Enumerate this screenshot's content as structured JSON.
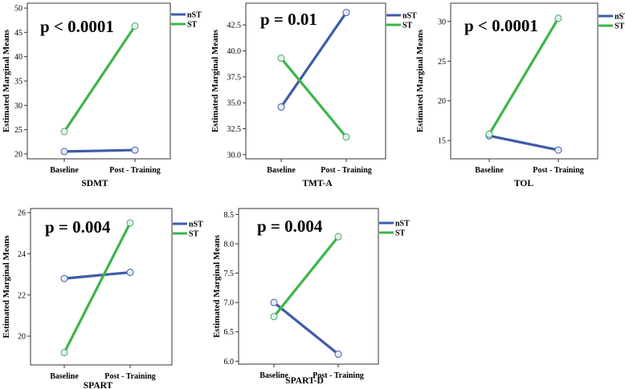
{
  "colors": {
    "nST": "#3f5ba9",
    "ST": "#3db54a",
    "frame": "#333333",
    "marker_fill": "#e6ecf8"
  },
  "chart_data": [
    {
      "type": "line",
      "xlabel": "SDMT",
      "ylabel": "Estimated Marginal Means",
      "annotation": "p < 0.0001",
      "categories": [
        "Baseline",
        "Post - Training"
      ],
      "ylim": [
        19,
        51
      ],
      "yticks": [
        20,
        25,
        30,
        35,
        40,
        45,
        50
      ],
      "tick_labels": [
        "20",
        "25",
        "30",
        "35",
        "40",
        "45",
        "50"
      ],
      "series": [
        {
          "name": "nST",
          "values": [
            20.5,
            20.8
          ]
        },
        {
          "name": "ST",
          "values": [
            24.6,
            46.3
          ]
        }
      ],
      "legend_position": "top-right"
    },
    {
      "type": "line",
      "xlabel": "TMT-A",
      "ylabel": "Estimated Marginal Means",
      "annotation": "p = 0.01",
      "categories": [
        "Baseline",
        "Post - Training"
      ],
      "ylim": [
        29.6,
        44.6
      ],
      "yticks": [
        30,
        32.5,
        35,
        37.5,
        40,
        42.5
      ],
      "tick_labels": [
        "30.0",
        "32.5",
        "35.0",
        "37.5",
        "40.0",
        "42.5"
      ],
      "series": [
        {
          "name": "nST",
          "values": [
            34.6,
            43.7
          ]
        },
        {
          "name": "ST",
          "values": [
            39.3,
            31.7
          ]
        }
      ],
      "legend_position": "top-right"
    },
    {
      "type": "line",
      "xlabel": "TOL",
      "ylabel": "Estimated Marginal Means",
      "annotation": "p < 0.0001",
      "categories": [
        "Baseline",
        "Post - Training"
      ],
      "ylim": [
        12.7,
        32.3
      ],
      "yticks": [
        15,
        20,
        25,
        30
      ],
      "tick_labels": [
        "15",
        "20",
        "25",
        "30"
      ],
      "series": [
        {
          "name": "nST",
          "values": [
            15.6,
            13.8
          ]
        },
        {
          "name": "ST",
          "values": [
            15.8,
            30.4
          ]
        }
      ],
      "legend_position": "top-right"
    },
    {
      "type": "line",
      "xlabel": "SPART",
      "ylabel": "Estimated Marginal Means",
      "annotation": "p = 0.004",
      "categories": [
        "Baseline",
        "Post - Training"
      ],
      "ylim": [
        18.6,
        26.2
      ],
      "yticks": [
        20,
        22,
        24,
        26
      ],
      "tick_labels": [
        "20",
        "22",
        "24",
        "26"
      ],
      "series": [
        {
          "name": "nST",
          "values": [
            22.8,
            23.1
          ]
        },
        {
          "name": "ST",
          "values": [
            19.2,
            25.5
          ]
        }
      ],
      "legend_position": "top-right"
    },
    {
      "type": "line",
      "xlabel": "SPART-D",
      "ylabel": "Estimated Marginal Means",
      "annotation": "p = 0.004",
      "categories": [
        "Baseline",
        "Post - Training"
      ],
      "ylim": [
        5.95,
        8.6
      ],
      "yticks": [
        6.0,
        6.5,
        7.0,
        7.5,
        8.0,
        8.5
      ],
      "tick_labels": [
        "6.0",
        "6.5",
        "7.0",
        "7.5",
        "8.0",
        "8.5"
      ],
      "series": [
        {
          "name": "nST",
          "values": [
            7.0,
            6.12
          ]
        },
        {
          "name": "ST",
          "values": [
            6.76,
            8.12
          ]
        }
      ],
      "legend_position": "top-right"
    }
  ]
}
